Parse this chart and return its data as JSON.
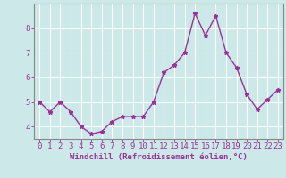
{
  "x": [
    0,
    1,
    2,
    3,
    4,
    5,
    6,
    7,
    8,
    9,
    10,
    11,
    12,
    13,
    14,
    15,
    16,
    17,
    18,
    19,
    20,
    21,
    22,
    23
  ],
  "y": [
    5.0,
    4.6,
    5.0,
    4.6,
    4.0,
    3.7,
    3.8,
    4.2,
    4.4,
    4.4,
    4.4,
    5.0,
    6.2,
    6.5,
    7.0,
    8.6,
    7.7,
    8.5,
    7.0,
    6.4,
    5.3,
    4.7,
    5.1,
    5.5
  ],
  "line_color": "#993399",
  "marker": "*",
  "marker_size": 3.5,
  "bg_color": "#cce8e8",
  "grid_color": "#b0d0d0",
  "axis_color": "#993399",
  "xlabel": "Windchill (Refroidissement éolien,°C)",
  "ylabel": "",
  "ylim": [
    3.5,
    9.0
  ],
  "xlim": [
    -0.5,
    23.5
  ],
  "yticks": [
    4,
    5,
    6,
    7,
    8
  ],
  "xticks": [
    0,
    1,
    2,
    3,
    4,
    5,
    6,
    7,
    8,
    9,
    10,
    11,
    12,
    13,
    14,
    15,
    16,
    17,
    18,
    19,
    20,
    21,
    22,
    23
  ],
  "xlabel_fontsize": 6.5,
  "tick_fontsize": 6.5,
  "line_width": 1.0
}
